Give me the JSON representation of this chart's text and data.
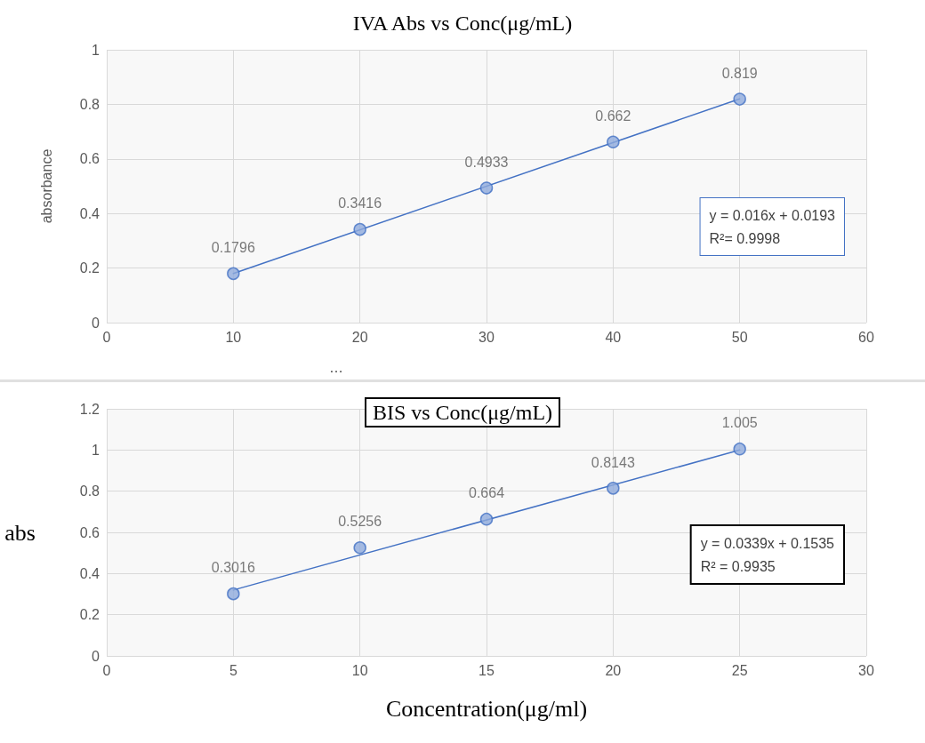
{
  "chart_data": [
    {
      "type": "scatter",
      "title": "IVA Abs vs Conc(μg/mL)",
      "ylabel": "absorbance",
      "x": [
        10,
        20,
        30,
        40,
        50
      ],
      "xlim": [
        0,
        60
      ],
      "xticks": [
        0,
        10,
        20,
        30,
        40,
        50,
        60
      ],
      "ylim": [
        0,
        1
      ],
      "yticks": [
        0,
        0.2,
        0.4,
        0.6,
        0.8,
        1
      ],
      "grid": true,
      "marker": "circle",
      "series": [
        {
          "color": "#4472c4",
          "values": [
            0.1796,
            0.3416,
            0.4933,
            0.662,
            0.819
          ],
          "value_labels": [
            "0.1796",
            "0.3416",
            "0.4933",
            "0.662",
            "0.819"
          ]
        },
        {
          "type": "line",
          "marker": "none",
          "color": "#4472c4",
          "x": [
            10,
            50
          ],
          "values": [
            0.18,
            0.82
          ]
        }
      ],
      "annotations": [
        "y = 0.016x + 0.0193\nR²= 0.9998",
        "…"
      ]
    },
    {
      "type": "scatter",
      "title": "BIS vs Conc(μg/mL)",
      "ylabel": "abs",
      "xlabel": "Concentration(μg/ml)",
      "x": [
        5,
        10,
        15,
        20,
        25
      ],
      "xlim": [
        0,
        30
      ],
      "xticks": [
        0,
        5,
        10,
        15,
        20,
        25,
        30
      ],
      "ylim": [
        0,
        1.2
      ],
      "yticks": [
        0,
        0.2,
        0.4,
        0.6,
        0.8,
        1,
        1.2
      ],
      "grid": true,
      "marker": "circle",
      "series": [
        {
          "color": "#4472c4",
          "values": [
            0.3016,
            0.5256,
            0.664,
            0.8143,
            1.005
          ],
          "value_labels": [
            "0.3016",
            "0.5256",
            "0.664",
            "0.8143",
            "1.005"
          ]
        },
        {
          "type": "line",
          "marker": "none",
          "color": "#4472c4",
          "x": [
            5,
            25
          ],
          "values": [
            0.32,
            1.0
          ]
        }
      ],
      "annotations": [
        "y = 0.0339x + 0.1535\nR² = 0.9935"
      ]
    }
  ]
}
